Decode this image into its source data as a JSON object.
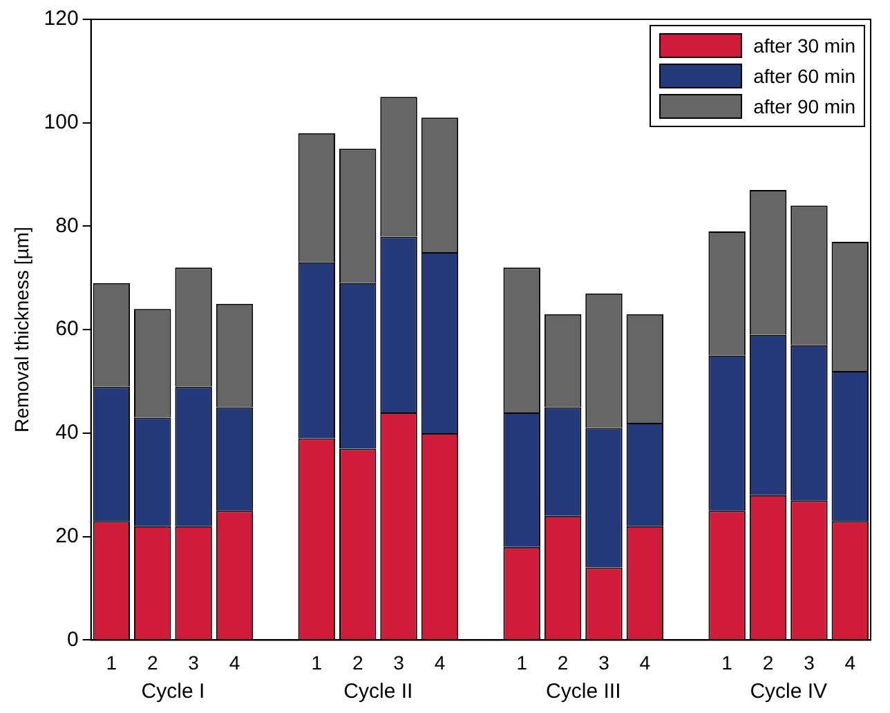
{
  "chart_data": {
    "type": "bar",
    "stacked": true,
    "ylabel": "Removal thickness [µm]",
    "categories": [
      "1",
      "2",
      "3",
      "4",
      null,
      "1",
      "2",
      "3",
      "4",
      null,
      "1",
      "2",
      "3",
      "4",
      null,
      "1",
      "2",
      "3",
      "4"
    ],
    "series": [
      {
        "name": "after 30 min",
        "color": "#d01c3a",
        "values": [
          23,
          22,
          22,
          25,
          null,
          39,
          37,
          44,
          40,
          null,
          18,
          24,
          14,
          22,
          null,
          25,
          28,
          27,
          23
        ]
      },
      {
        "name": "after 60 min",
        "color": "#24397a",
        "values": [
          26,
          21,
          27,
          20,
          null,
          34,
          32,
          34,
          35,
          null,
          26,
          21,
          27,
          20,
          null,
          30,
          31,
          30,
          29
        ]
      },
      {
        "name": "after 90 min",
        "color": "#666666",
        "values": [
          20,
          21,
          23,
          20,
          null,
          25,
          26,
          27,
          26,
          null,
          28,
          18,
          26,
          21,
          null,
          24,
          28,
          27,
          25
        ]
      }
    ],
    "annotations": [
      "Cycle I",
      "Cycle II",
      "Cycle III",
      "Cycle IV"
    ],
    "ylim": [
      0,
      120
    ],
    "yticks": [
      0,
      20,
      40,
      60,
      80,
      100,
      120
    ],
    "grid": false,
    "legend": "top right"
  }
}
